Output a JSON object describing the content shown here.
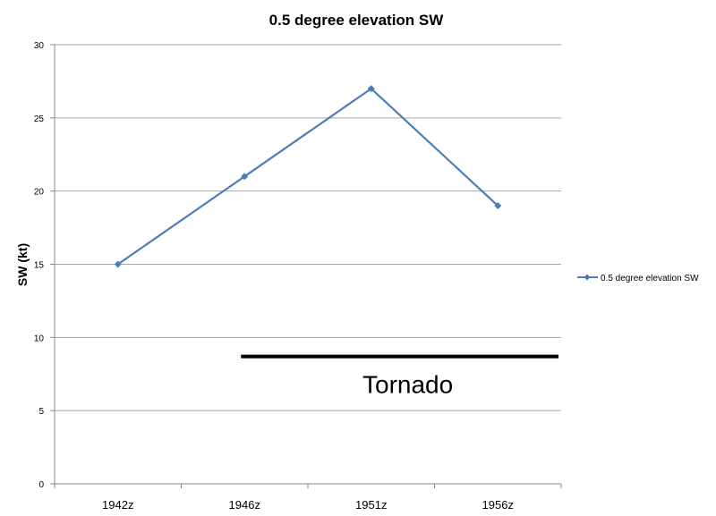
{
  "chart_data": {
    "type": "line",
    "title": "0.5 degree elevation SW",
    "xlabel": "",
    "ylabel": "SW (kt)",
    "categories": [
      "1942z",
      "1946z",
      "1951z",
      "1956z"
    ],
    "series": [
      {
        "name": "0.5 degree elevation SW",
        "values": [
          15,
          21,
          27,
          19
        ],
        "color": "#4a7ebb",
        "marker": "diamond"
      }
    ],
    "ylim": [
      0,
      30
    ],
    "yticks": [
      0,
      5,
      10,
      15,
      20,
      25,
      30
    ],
    "grid": true,
    "legend": "right",
    "annotation": {
      "text": "Tornado",
      "y_value": 8.7,
      "x_from": "1946z",
      "x_to": "1956z+",
      "color": "#000000"
    }
  }
}
